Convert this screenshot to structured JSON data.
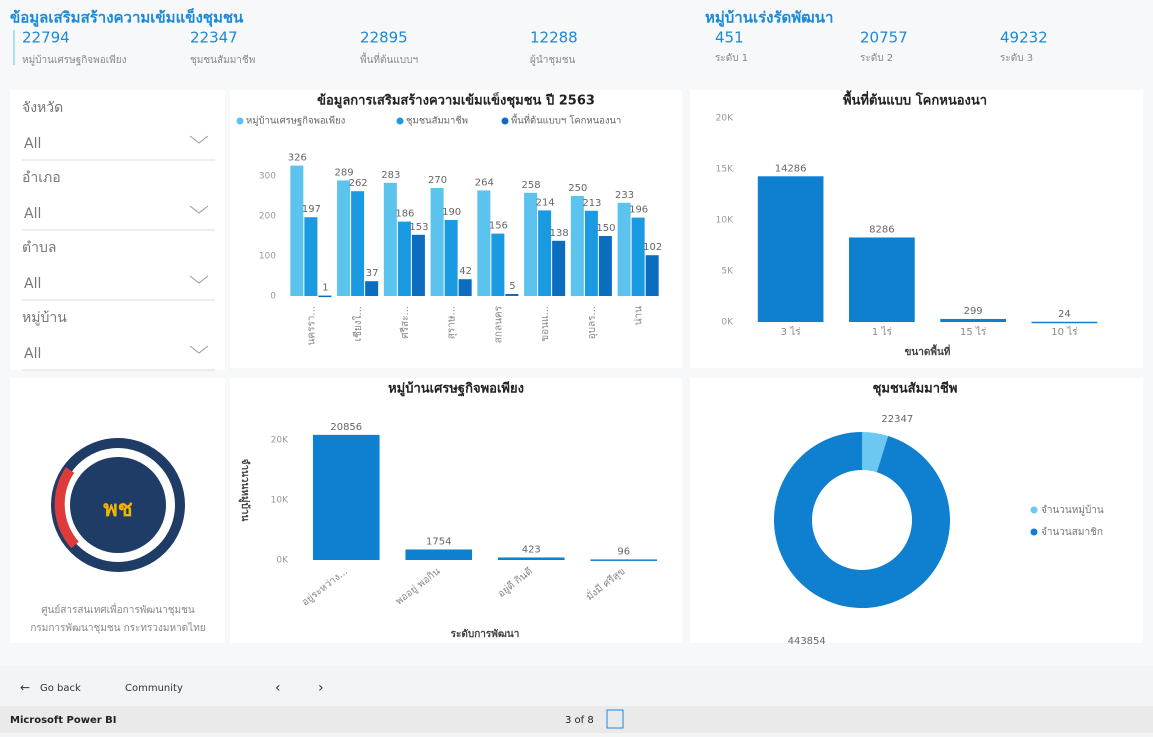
{
  "header": {
    "title": "ข้อมูลเสริมสร้างความเข้มแข็งชุมชน",
    "kpis": [
      {
        "value": 22794,
        "label": "หมู่บ้านเศรษฐกิจพอเพียง"
      },
      {
        "value": 22347,
        "label": "ชุมชนสัมมาชีพ"
      },
      {
        "value": 22895,
        "label": "พื้นที่ต้นแบบฯ"
      },
      {
        "value": 12288,
        "label": "ผู้นำชุมชน"
      }
    ],
    "group_title": "หมู่บ้านเร่งรัดพัฒนา",
    "levels": [
      {
        "value": 451,
        "label": "ระดับ 1"
      },
      {
        "value": 20757,
        "label": "ระดับ 2"
      },
      {
        "value": 49232,
        "label": "ระดับ 3"
      }
    ]
  },
  "filters": [
    {
      "label": "จังหวัด",
      "value": "All"
    },
    {
      "label": "อำเภอ",
      "value": "All"
    },
    {
      "label": "ตำบล",
      "value": "All"
    },
    {
      "label": "หมู่บ้าน",
      "value": "All"
    }
  ],
  "logo": {
    "mark": "พช",
    "line1": "ศูนย์สารสนเทศเพื่อการพัฒนาชุมชน",
    "line2": "กรมการพัฒนาชุมชน กระทรวงมหาดไทย"
  },
  "chart_data": [
    {
      "type": "bar",
      "title": "ข้อมูลการเสริมสร้างความเข้มแข็งชุมชน ปี 2563",
      "categories": [
        "นครรา...",
        "เชียงใ...",
        "ศรีสะ...",
        "สุราษ...",
        "สกลนคร",
        "ขอนแ...",
        "อุบลร...",
        "น่าน"
      ],
      "series": [
        {
          "name": "หมู่บ้านเศรษฐกิจพอเพียง",
          "color": "#5cc3ef",
          "values": [
            326,
            289,
            283,
            270,
            264,
            258,
            250,
            233
          ]
        },
        {
          "name": "ชุมชนสัมมาชีพ",
          "color": "#1a9ae0",
          "values": [
            197,
            262,
            186,
            190,
            156,
            214,
            213,
            196
          ]
        },
        {
          "name": "พื้นที่ต้นแบบฯ โคกหนองนา",
          "color": "#0b6dc0",
          "values": [
            1,
            37,
            153,
            42,
            5,
            138,
            150,
            102
          ]
        }
      ],
      "ylim": [
        0,
        340
      ],
      "yticks": [
        0,
        100,
        200,
        300
      ]
    },
    {
      "type": "bar",
      "title": "พื้นที่ต้นแบบ โคกหนองนา",
      "x_label": "ขนาดพื้นที่",
      "categories": [
        "3 ไร่",
        "1 ไร่",
        "15 ไร่",
        "10 ไร่"
      ],
      "values": [
        14286,
        8286,
        299,
        24
      ],
      "color": "#0f7fd0",
      "ylim": [
        0,
        20000
      ],
      "yticks": [
        {
          "value": 0,
          "label": "0K"
        },
        {
          "value": 5000,
          "label": "5K"
        },
        {
          "value": 10000,
          "label": "10K"
        },
        {
          "value": 15000,
          "label": "15K"
        },
        {
          "value": 20000,
          "label": "20K"
        }
      ]
    },
    {
      "type": "bar",
      "title": "หมู่บ้านเศรษฐกิจพอเพียง",
      "x_label": "ระดับการพัฒนา",
      "y_label": "จำนวนหมู่บ้าน",
      "categories": [
        "อยู่ระหว่าง...",
        "พออยู่ พอกิน",
        "อยู่ดี กินดี",
        "มั่งมี ศรีสุข"
      ],
      "values": [
        20856,
        1754,
        423,
        96
      ],
      "color": "#0f7fd0",
      "ylim": [
        0,
        22000
      ],
      "yticks": [
        {
          "value": 0,
          "label": "0K"
        },
        {
          "value": 10000,
          "label": "10K"
        },
        {
          "value": 20000,
          "label": "20K"
        }
      ]
    },
    {
      "type": "donut",
      "title": "ชุมชนสัมมาชีพ",
      "categories": [
        "จำนวนหมู่บ้าน",
        "จำนวนสมาชิก"
      ],
      "values": [
        22347,
        443854
      ],
      "colors": [
        "#6cc8f0",
        "#0f7fd0"
      ]
    }
  ],
  "nav": {
    "back": "Go back",
    "page": "Community",
    "app": "Microsoft Power BI",
    "pager": "3 of 8"
  }
}
